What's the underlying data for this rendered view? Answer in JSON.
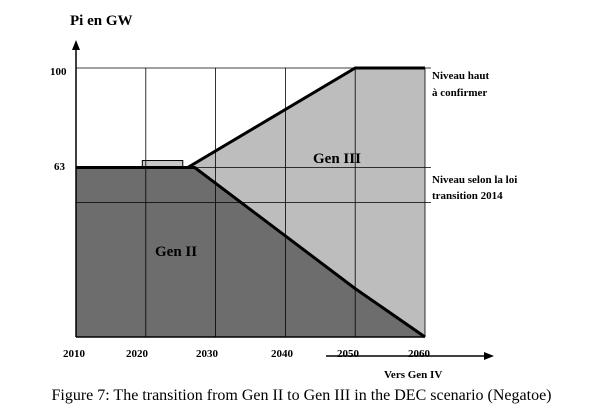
{
  "chart_data": {
    "type": "area",
    "ylabel": "Pi en GW",
    "xlabel": "Vers Gen IV",
    "x_ticks": [
      "2010",
      "2020",
      "2030",
      "2040",
      "2050",
      "2060"
    ],
    "y_ticks": [
      "100",
      "63"
    ],
    "xlim": [
      2010,
      2060
    ],
    "ylim": [
      0,
      100
    ],
    "grid": true,
    "series": [
      {
        "name": "Gen II",
        "x": [
          2010,
          2027,
          2050,
          2060
        ],
        "y": [
          63,
          63,
          18,
          0
        ],
        "color": "#6d6d6d"
      },
      {
        "name": "Gen III",
        "x": [
          2027,
          2050,
          2060
        ],
        "y": [
          0,
          82,
          100
        ],
        "color": "#bdbdbd"
      }
    ],
    "total_capacity": {
      "x": [
        2010,
        2026,
        2050,
        2060
      ],
      "y": [
        63,
        63,
        100,
        100
      ]
    },
    "annotations": [
      {
        "text": "Niveau haut",
        "at": 100
      },
      {
        "text": "à confirmer",
        "at": 100
      },
      {
        "text": "Niveau selon la loi",
        "at": 63
      },
      {
        "text": "transition 2014",
        "at": 63
      }
    ],
    "series_colors": {
      "gen2": "#6d6d6d",
      "gen3": "#bdbdbd",
      "top_block": "#c8c8c8"
    }
  },
  "caption": "Figure 7: The transition from Gen II to Gen III in the DEC scenario (Negatoe)"
}
